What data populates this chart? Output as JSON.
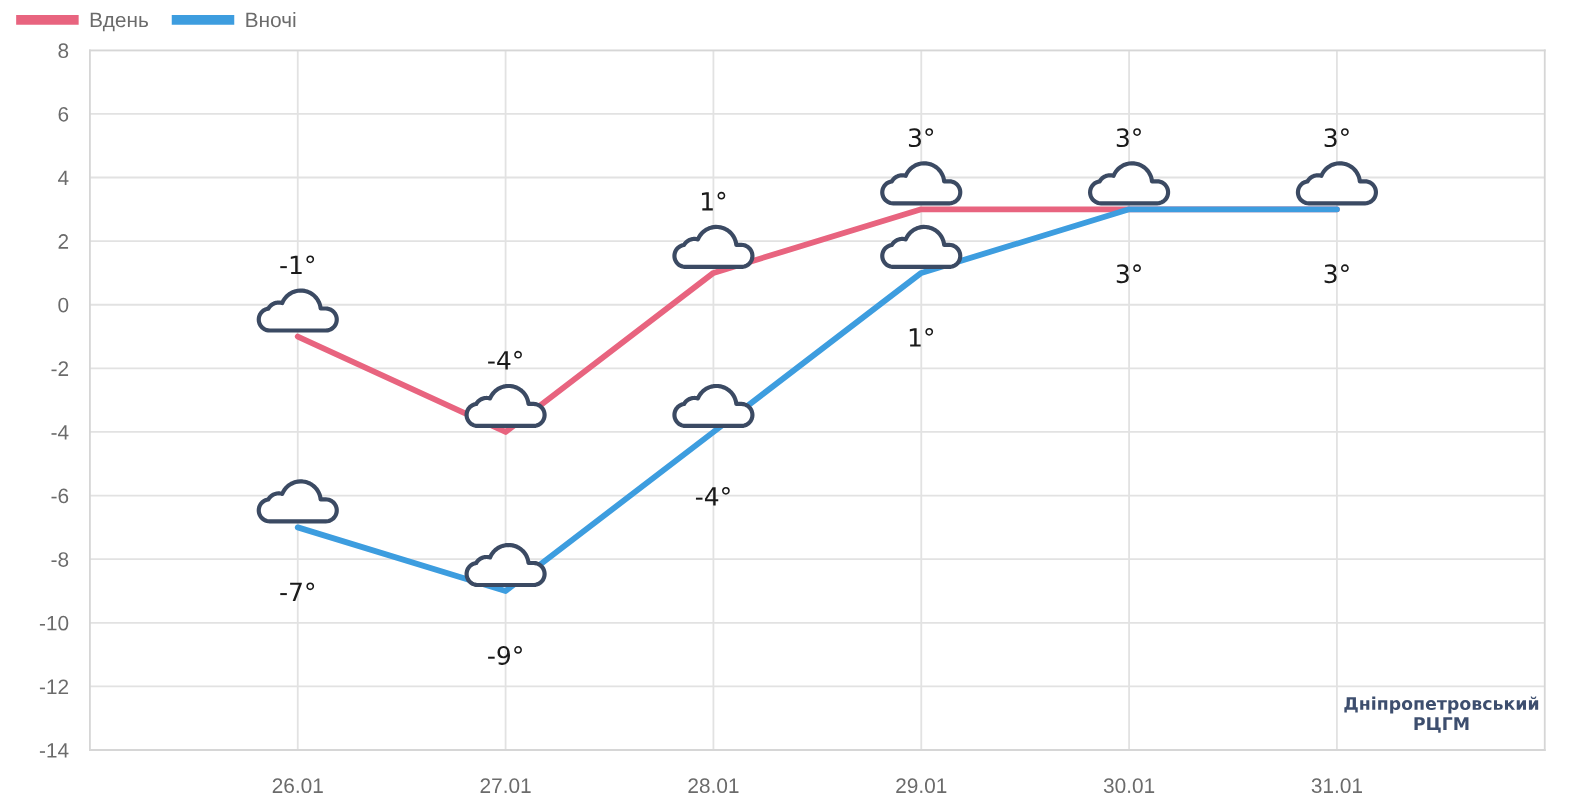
{
  "chart_data": {
    "type": "line",
    "categories": [
      "26.01",
      "27.01",
      "28.01",
      "29.01",
      "30.01",
      "31.01"
    ],
    "series": [
      {
        "name": "Вдень",
        "color": "#e8647f",
        "values": [
          -1,
          -4,
          1,
          3,
          3,
          3
        ],
        "value_labels": [
          "-1°",
          "-4°",
          "1°",
          "3°",
          "3°",
          "3°"
        ]
      },
      {
        "name": "Вночі",
        "color": "#3d9ddf",
        "values": [
          -7,
          -9,
          -4,
          1,
          3,
          3
        ],
        "value_labels": [
          "-7°",
          "-9°",
          "-4°",
          "1°",
          "3°",
          "3°"
        ]
      }
    ],
    "ylim": [
      -14,
      8
    ],
    "yticks": [
      -14,
      -12,
      -10,
      -8,
      -6,
      -4,
      -2,
      0,
      2,
      4,
      6,
      8
    ],
    "grid": true,
    "legend": "top left",
    "line_style": "solid",
    "annotations": [
      "Дніпропетровський\nРЦГМ"
    ]
  }
}
